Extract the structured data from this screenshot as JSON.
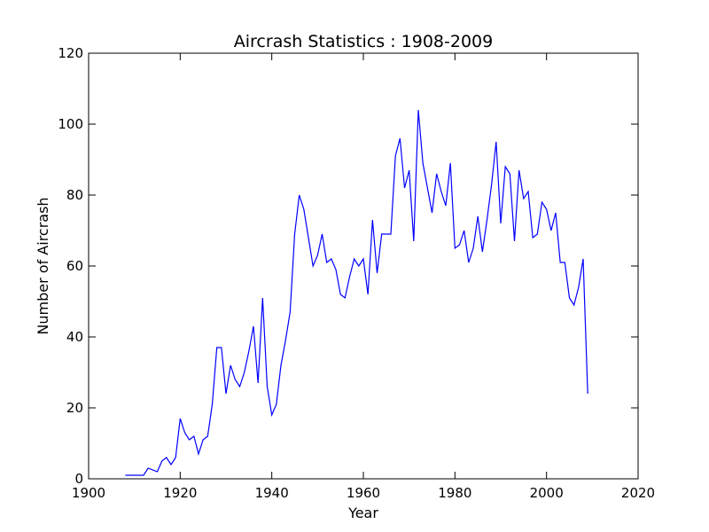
{
  "chart_data": {
    "type": "line",
    "title": "Aircrash Statistics : 1908-2009",
    "xlabel": "Year",
    "ylabel": "Number of Aircrash",
    "xlim": [
      1900,
      2020
    ],
    "ylim": [
      0,
      120
    ],
    "xticks": [
      1900,
      1920,
      1940,
      1960,
      1980,
      2000,
      2020
    ],
    "yticks": [
      0,
      20,
      40,
      60,
      80,
      100,
      120
    ],
    "grid": false,
    "legend": "none",
    "series": [
      {
        "color": "#0000ff",
        "x": [
          1908,
          1912,
          1913,
          1915,
          1916,
          1917,
          1918,
          1919,
          1920,
          1921,
          1922,
          1923,
          1924,
          1925,
          1926,
          1927,
          1928,
          1929,
          1930,
          1931,
          1932,
          1933,
          1934,
          1935,
          1936,
          1937,
          1938,
          1939,
          1940,
          1941,
          1942,
          1943,
          1944,
          1945,
          1946,
          1947,
          1948,
          1949,
          1950,
          1951,
          1952,
          1953,
          1954,
          1955,
          1956,
          1957,
          1958,
          1959,
          1960,
          1961,
          1962,
          1963,
          1964,
          1965,
          1966,
          1967,
          1968,
          1969,
          1970,
          1971,
          1972,
          1973,
          1974,
          1975,
          1976,
          1977,
          1978,
          1979,
          1980,
          1981,
          1982,
          1983,
          1984,
          1985,
          1986,
          1987,
          1988,
          1989,
          1990,
          1991,
          1992,
          1993,
          1994,
          1995,
          1996,
          1997,
          1998,
          1999,
          2000,
          2001,
          2002,
          2003,
          2004,
          2005,
          2006,
          2007,
          2008,
          2009
        ],
        "y": [
          1,
          1,
          3,
          2,
          5,
          6,
          4,
          6,
          17,
          13,
          11,
          12,
          7,
          11,
          12,
          21,
          37,
          37,
          24,
          32,
          28,
          26,
          30,
          36,
          43,
          27,
          51,
          26,
          18,
          21,
          32,
          39,
          47,
          69,
          80,
          76,
          68,
          60,
          63,
          69,
          61,
          62,
          59,
          52,
          51,
          57,
          62,
          60,
          62,
          52,
          73,
          58,
          69,
          69,
          69,
          91,
          96,
          82,
          87,
          67,
          104,
          89,
          82,
          75,
          86,
          81,
          77,
          89,
          65,
          66,
          70,
          61,
          65,
          74,
          64,
          73,
          83,
          95,
          72,
          88,
          86,
          67,
          87,
          79,
          81,
          68,
          69,
          78,
          76,
          70,
          75,
          61,
          61,
          51,
          49,
          54,
          62,
          24
        ]
      }
    ]
  }
}
